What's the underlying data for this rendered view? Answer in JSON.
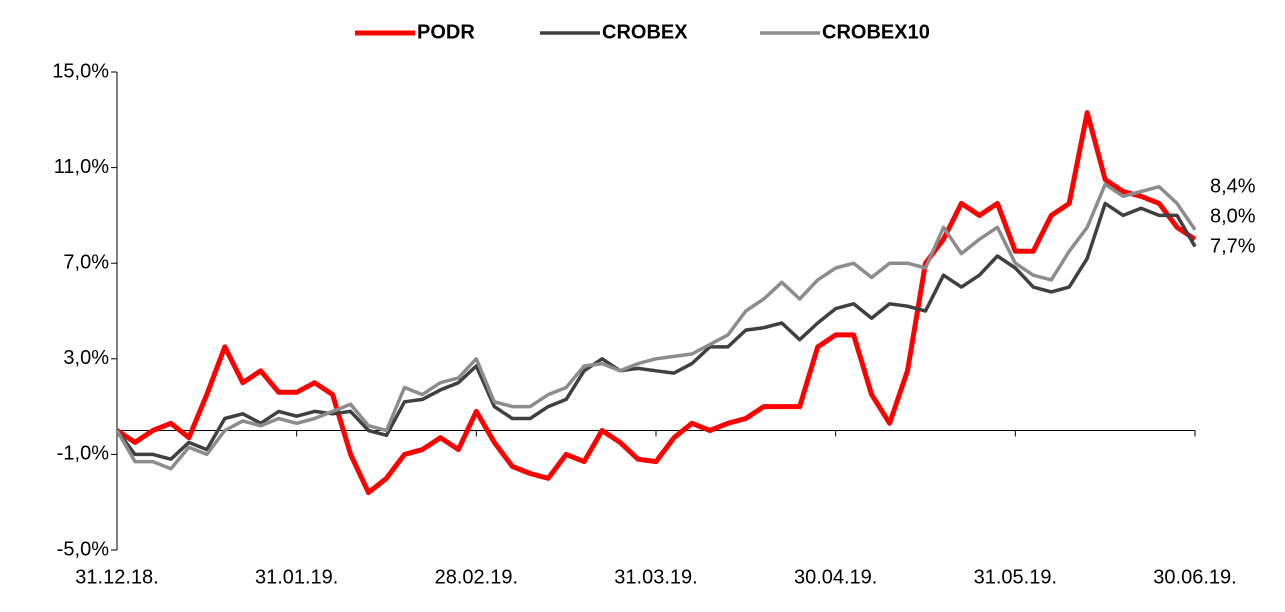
{
  "chart_data": {
    "type": "line",
    "categories": [
      "31.12.18.",
      null,
      null,
      null,
      null,
      null,
      null,
      null,
      null,
      null,
      "31.01.19.",
      null,
      null,
      null,
      null,
      null,
      null,
      null,
      null,
      null,
      "28.02.19.",
      null,
      null,
      null,
      null,
      null,
      null,
      null,
      null,
      null,
      "31.03.19.",
      null,
      null,
      null,
      null,
      null,
      null,
      null,
      null,
      null,
      "30.04.19.",
      null,
      null,
      null,
      null,
      null,
      null,
      null,
      null,
      null,
      "31.05.19.",
      null,
      null,
      null,
      null,
      null,
      null,
      null,
      null,
      null,
      "30.06.19."
    ],
    "series": [
      {
        "name": "PODR",
        "color": "#ff0000",
        "width": 5,
        "values": [
          0,
          -0.5,
          0,
          0.3,
          -0.3,
          1.5,
          3.5,
          2.0,
          2.5,
          1.6,
          1.6,
          2.0,
          1.5,
          -1.0,
          -2.6,
          -2.0,
          -1.0,
          -0.8,
          -0.3,
          -0.8,
          0.8,
          -0.5,
          -1.5,
          -1.8,
          -2.0,
          -1.0,
          -1.3,
          0,
          -0.5,
          -1.2,
          -1.3,
          -0.3,
          0.3,
          0,
          0.3,
          0.5,
          1.0,
          1.0,
          1.0,
          3.5,
          4.0,
          4.0,
          1.5,
          0.3,
          2.5,
          7.0,
          8.0,
          9.5,
          9.0,
          9.5,
          7.5,
          7.5,
          9.0,
          9.5,
          13.3,
          10.5,
          10.0,
          9.8,
          9.5,
          8.5,
          8.0
        ],
        "value_labels": [
          null,
          null,
          null,
          null,
          null,
          null,
          null,
          null,
          null,
          null,
          null,
          null,
          null,
          null,
          null,
          null,
          null,
          null,
          null,
          null,
          null,
          null,
          null,
          null,
          null,
          null,
          null,
          null,
          null,
          null,
          null,
          null,
          null,
          null,
          null,
          null,
          null,
          null,
          null,
          null,
          null,
          null,
          null,
          null,
          null,
          null,
          null,
          null,
          null,
          null,
          null,
          null,
          null,
          null,
          null,
          null,
          null,
          null,
          null,
          null,
          "8,0%"
        ]
      },
      {
        "name": "CROBEX",
        "color": "#404040",
        "width": 3.5,
        "values": [
          0,
          -1.0,
          -1.0,
          -1.2,
          -0.5,
          -0.8,
          0.5,
          0.7,
          0.3,
          0.8,
          0.6,
          0.8,
          0.7,
          0.8,
          0,
          -0.2,
          1.2,
          1.3,
          1.7,
          2.0,
          2.7,
          1.0,
          0.5,
          0.5,
          1.0,
          1.3,
          2.5,
          3.0,
          2.5,
          2.6,
          2.5,
          2.4,
          2.8,
          3.5,
          3.5,
          4.2,
          4.3,
          4.5,
          3.8,
          4.5,
          5.1,
          5.3,
          4.7,
          5.3,
          5.2,
          5.0,
          6.5,
          6.0,
          6.5,
          7.3,
          6.8,
          6.0,
          5.8,
          6.0,
          7.2,
          9.5,
          9.0,
          9.3,
          9.0,
          9.0,
          7.7
        ],
        "value_labels": [
          null,
          null,
          null,
          null,
          null,
          null,
          null,
          null,
          null,
          null,
          null,
          null,
          null,
          null,
          null,
          null,
          null,
          null,
          null,
          null,
          null,
          null,
          null,
          null,
          null,
          null,
          null,
          null,
          null,
          null,
          null,
          null,
          null,
          null,
          null,
          null,
          null,
          null,
          null,
          null,
          null,
          null,
          null,
          null,
          null,
          null,
          null,
          null,
          null,
          null,
          null,
          null,
          null,
          null,
          null,
          null,
          null,
          null,
          null,
          null,
          "7,7%"
        ]
      },
      {
        "name": "CROBEX10",
        "color": "#8c8c8c",
        "width": 3.5,
        "values": [
          0,
          -1.3,
          -1.3,
          -1.6,
          -0.7,
          -1.0,
          0,
          0.4,
          0.2,
          0.5,
          0.3,
          0.5,
          0.8,
          1.1,
          0.2,
          0,
          1.8,
          1.5,
          2.0,
          2.2,
          3.0,
          1.2,
          1.0,
          1.0,
          1.5,
          1.8,
          2.7,
          2.8,
          2.5,
          2.8,
          3.0,
          3.1,
          3.2,
          3.6,
          4.0,
          5.0,
          5.5,
          6.2,
          5.5,
          6.3,
          6.8,
          7.0,
          6.4,
          7.0,
          7.0,
          6.8,
          8.5,
          7.4,
          8.0,
          8.5,
          7.0,
          6.5,
          6.3,
          7.5,
          8.5,
          10.3,
          9.8,
          10.0,
          10.2,
          9.5,
          8.4
        ],
        "value_labels": [
          null,
          null,
          null,
          null,
          null,
          null,
          null,
          null,
          null,
          null,
          null,
          null,
          null,
          null,
          null,
          null,
          null,
          null,
          null,
          null,
          null,
          null,
          null,
          null,
          null,
          null,
          null,
          null,
          null,
          null,
          null,
          null,
          null,
          null,
          null,
          null,
          null,
          null,
          null,
          null,
          null,
          null,
          null,
          null,
          null,
          null,
          null,
          null,
          null,
          null,
          null,
          null,
          null,
          null,
          null,
          null,
          null,
          null,
          null,
          null,
          "8,4%"
        ]
      }
    ],
    "ylim": [
      -5,
      15
    ],
    "yticks": [
      {
        "value": -5,
        "label": "-5,0%"
      },
      {
        "value": -1,
        "label": "-1,0%"
      },
      {
        "value": 3,
        "label": "3,0%"
      },
      {
        "value": 7,
        "label": "7,0%"
      },
      {
        "value": 11,
        "label": "11,0%"
      },
      {
        "value": 15,
        "label": "15,0%"
      }
    ],
    "grid": false,
    "legend": "top"
  }
}
